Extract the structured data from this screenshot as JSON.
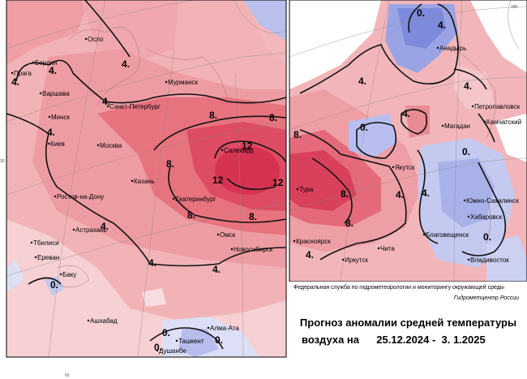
{
  "title_line1": "Прогноз аномалии средней температуры",
  "title_prefix": "воздуха на",
  "date_range": "25.12.2024 -  3. 1.2025",
  "credit": "Федеральная служба по гидрометеорологии и мониторингу окружающей среды",
  "agency": "Гидрометцентр России",
  "contour_labels": [
    "12",
    "8.",
    "4.",
    "0."
  ],
  "cities_west": [
    "Осло",
    "Берлин",
    "Прага",
    "Варшава",
    "Санкт-Петербург",
    "Мурманск",
    "Минск",
    "Киев",
    "Москва",
    "Казань",
    "Ростов-на-Дону",
    "Екатеринбург",
    "Салехард",
    "Астрахань",
    "Тбилиси",
    "Ереван",
    "Баку",
    "Омск",
    "Новосибирск",
    "Ашхабад",
    "Алма-Ата",
    "Ташкент",
    "Душанбе"
  ],
  "cities_east": [
    "Анадырь",
    "Петропавловск",
    "Камчатский",
    "Магадан",
    "Якутск",
    "Тура",
    "Южно-Сахалинск",
    "Хабаровск",
    "Красноярск",
    "Чита",
    "Иркутск",
    "Благовещенск",
    "Владивосток"
  ],
  "colors": {
    "warm_light": "#f4c4c4",
    "warm_mid": "#ec9aa0",
    "warm_strong": "#e46a7a",
    "warm_max": "#d63a55",
    "cold_light": "#c7cdf0",
    "cold_strong": "#8f9be2"
  }
}
